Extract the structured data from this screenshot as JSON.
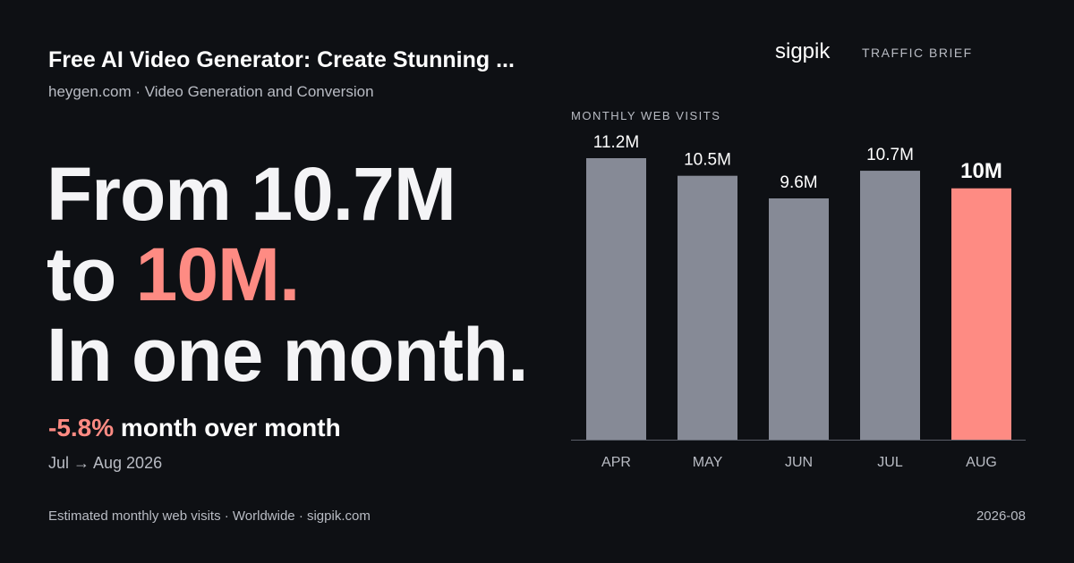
{
  "header": {
    "title": "Free AI Video Generator: Create Stunning ...",
    "subtitle": "heygen.com · Video Generation and Conversion"
  },
  "brand": {
    "name": "sigpik",
    "tag": "TRAFFIC BRIEF"
  },
  "headline": {
    "line1": "From 10.7M",
    "line2_prefix": "to ",
    "line2_accent": "10M.",
    "line3": "In one month."
  },
  "change": {
    "percent": "-5.8%",
    "text": " month over month",
    "period": "Jul → Aug 2026"
  },
  "footer": {
    "source": "Estimated monthly web visits · Worldwide · sigpik.com",
    "date": "2026-08"
  },
  "colors": {
    "background": "#0e1014",
    "bar": "#868a96",
    "highlight": "#fe8b83",
    "muted_text": "#b9bcc4"
  },
  "chart_data": {
    "type": "bar",
    "title": "MONTHLY WEB VISITS",
    "categories": [
      "APR",
      "MAY",
      "JUN",
      "JUL",
      "AUG"
    ],
    "values": [
      11.2,
      10.5,
      9.6,
      10.7,
      10.0
    ],
    "value_labels": [
      "11.2M",
      "10.5M",
      "9.6M",
      "10.7M",
      "10M"
    ],
    "highlight_index": 4,
    "ylim": [
      0,
      11.2
    ],
    "grid": false,
    "legend": "none"
  }
}
